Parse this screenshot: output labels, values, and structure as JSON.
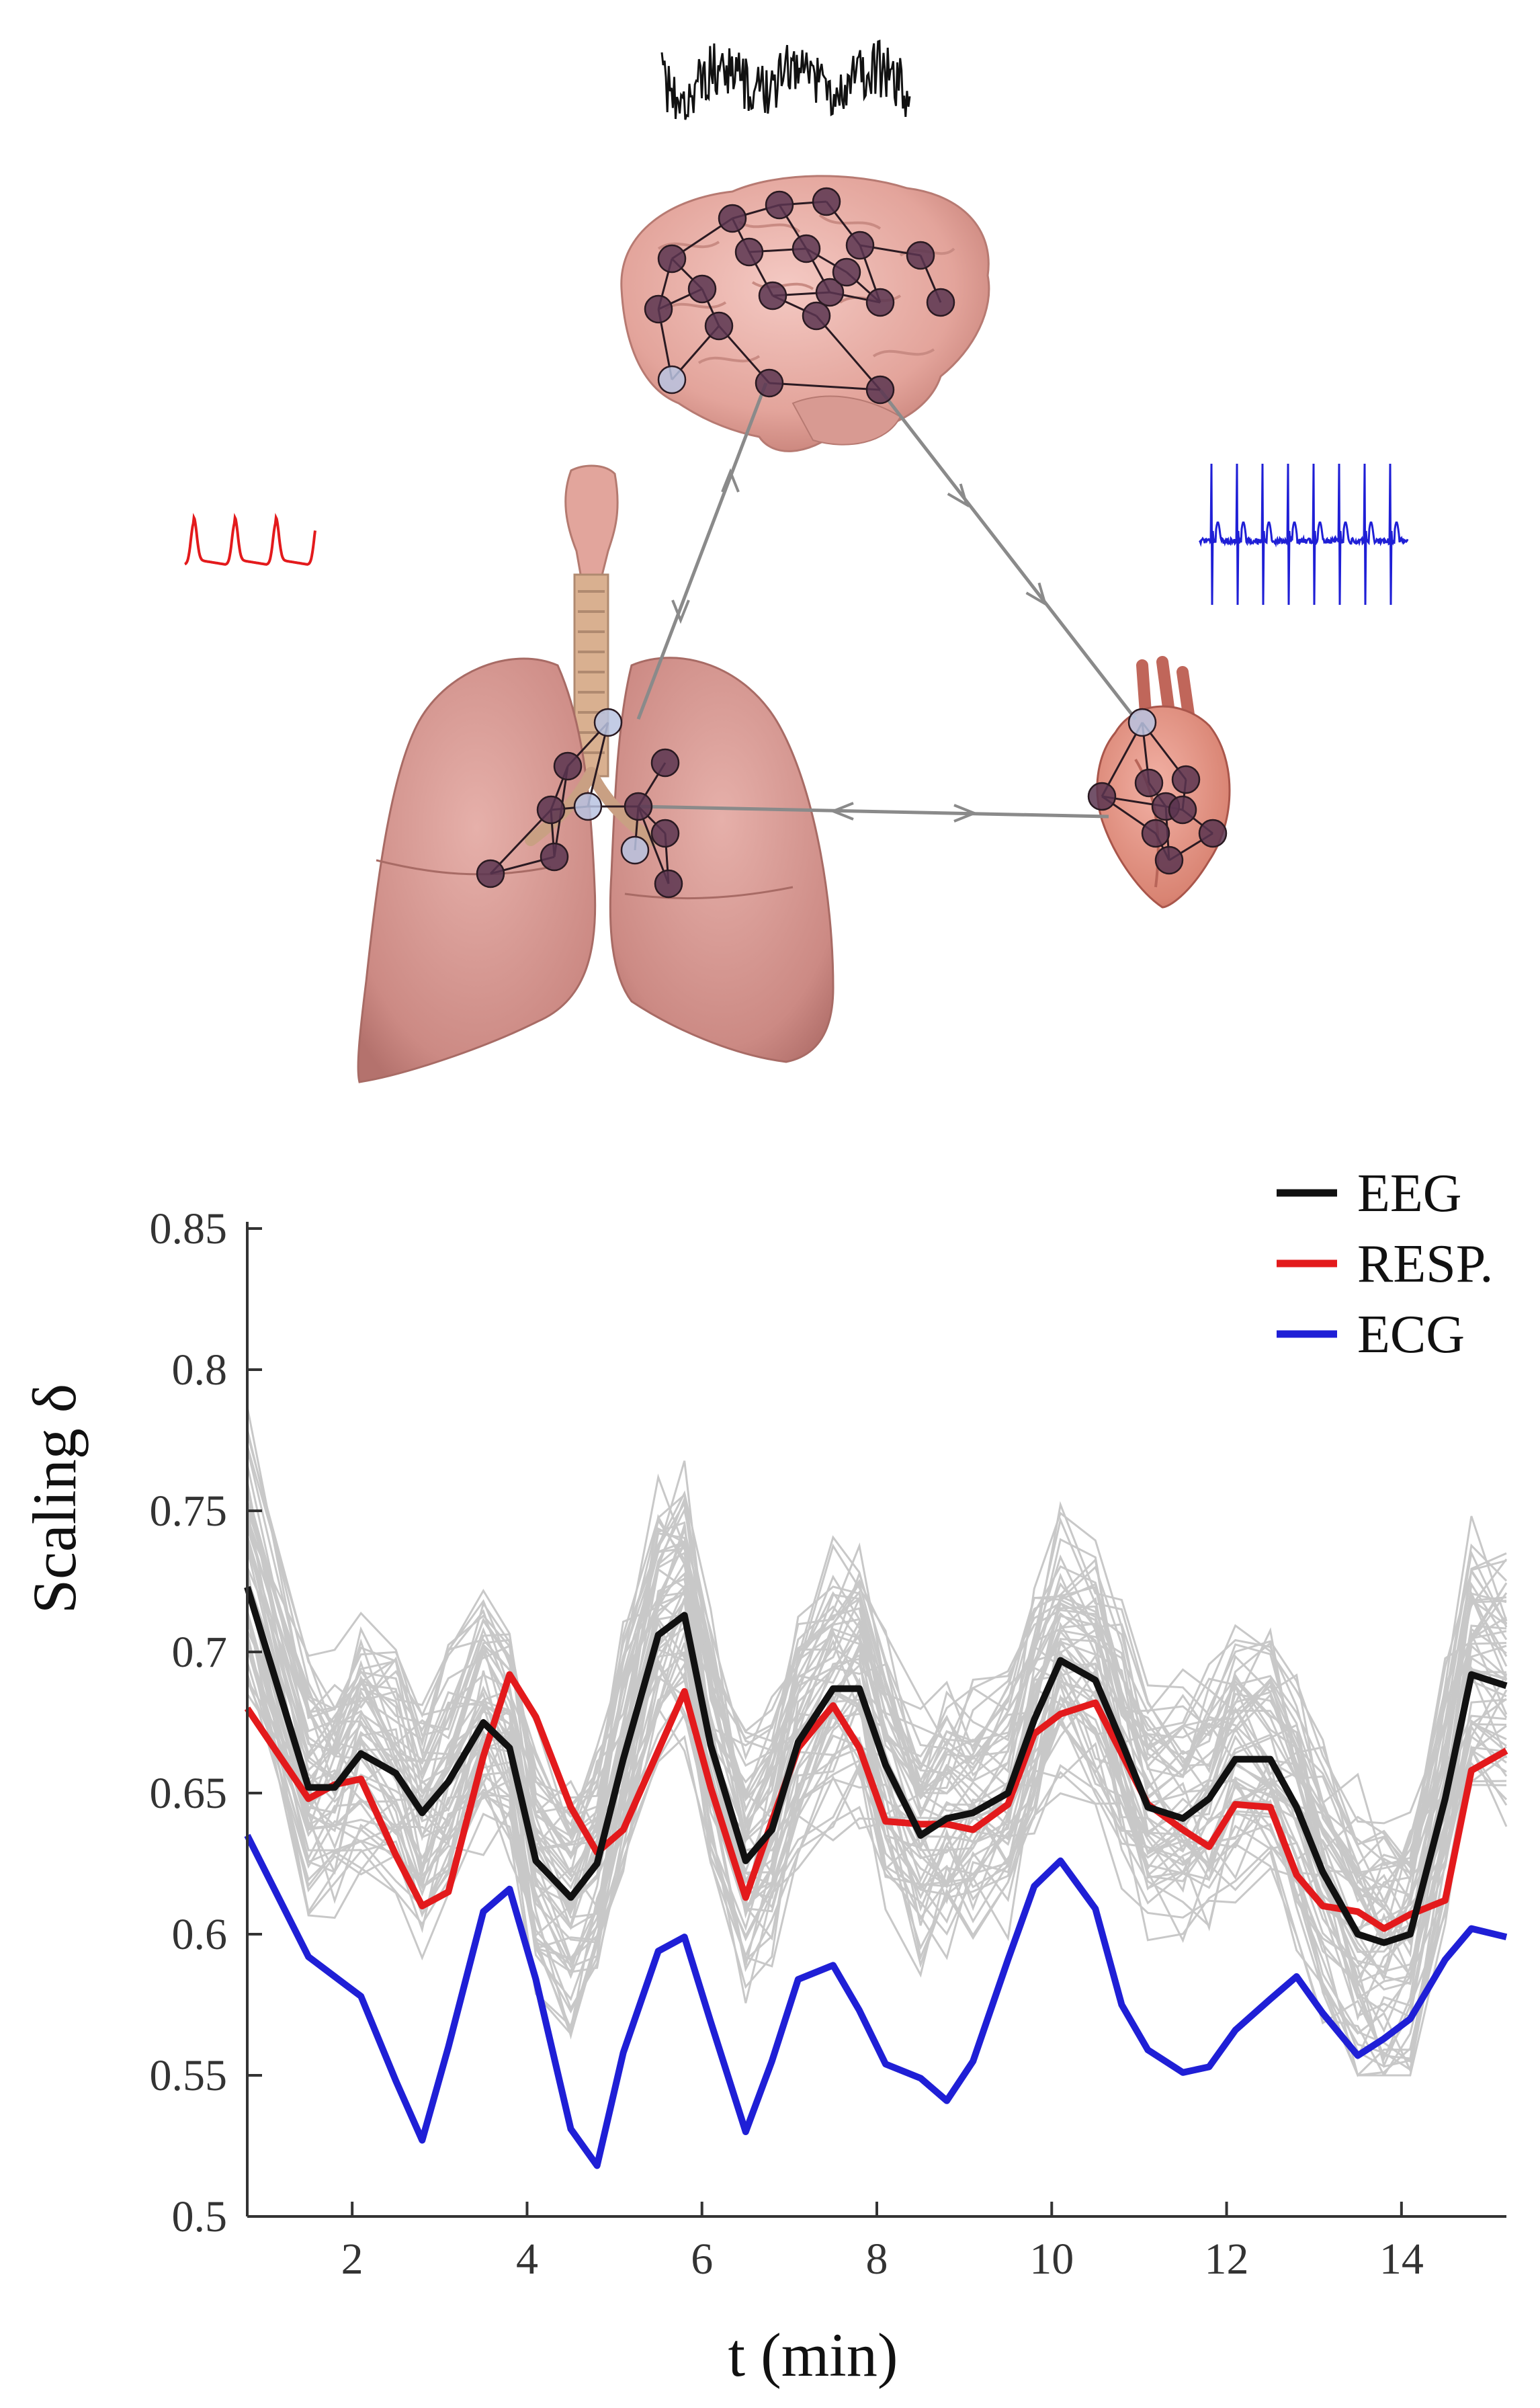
{
  "diagram": {
    "organs": [
      "brain-icon",
      "lungs-icon",
      "heart-icon"
    ],
    "signals": [
      {
        "organ": "brain",
        "color": "#111111"
      },
      {
        "organ": "lungs",
        "color": "#e31a1c"
      },
      {
        "organ": "heart",
        "color": "#1f1fd6"
      }
    ],
    "network_node_color": "#5a3550",
    "edge_color": "#8a8a8a"
  },
  "chart_data": {
    "type": "line",
    "xlabel": "t (min)",
    "ylabel": "Scaling  δ",
    "xlim": [
      0.8,
      15.2
    ],
    "ylim": [
      0.5,
      0.85
    ],
    "xticks": [
      2,
      4,
      6,
      8,
      10,
      12,
      14
    ],
    "yticks": [
      0.5,
      0.55,
      0.6,
      0.65,
      0.7,
      0.75,
      0.8,
      0.85
    ],
    "xtick_labels": [
      "2",
      "4",
      "6",
      "8",
      "10",
      "12",
      "14"
    ],
    "ytick_labels": [
      "0.5",
      "0.55",
      "0.6",
      "0.65",
      "0.7",
      "0.75",
      "0.8",
      "0.85"
    ],
    "legend_placement": "top-right",
    "grid": false,
    "background_traces_color": "#c8c8c8",
    "series": [
      {
        "name": "EEG",
        "color": "#111111",
        "x": [
          0.8,
          1.5,
          1.8,
          2.1,
          2.5,
          2.8,
          3.1,
          3.5,
          3.8,
          4.1,
          4.5,
          4.8,
          5.1,
          5.5,
          5.8,
          6.1,
          6.5,
          6.8,
          7.1,
          7.5,
          7.8,
          8.1,
          8.5,
          8.8,
          9.1,
          9.5,
          9.8,
          10.1,
          10.5,
          10.8,
          11.1,
          11.5,
          11.8,
          12.1,
          12.5,
          12.8,
          13.1,
          13.5,
          13.8,
          14.1,
          14.5,
          14.8,
          15.2
        ],
        "y": [
          0.723,
          0.652,
          0.652,
          0.664,
          0.657,
          0.643,
          0.654,
          0.675,
          0.666,
          0.626,
          0.613,
          0.625,
          0.662,
          0.706,
          0.713,
          0.667,
          0.626,
          0.637,
          0.668,
          0.687,
          0.687,
          0.66,
          0.635,
          0.641,
          0.643,
          0.65,
          0.676,
          0.697,
          0.69,
          0.668,
          0.645,
          0.641,
          0.648,
          0.662,
          0.662,
          0.645,
          0.622,
          0.6,
          0.597,
          0.6,
          0.648,
          0.692,
          0.688
        ]
      },
      {
        "name": "RESP.",
        "color": "#e31a1c",
        "x": [
          0.8,
          1.5,
          1.8,
          2.1,
          2.5,
          2.8,
          3.1,
          3.5,
          3.8,
          4.1,
          4.5,
          4.8,
          5.1,
          5.5,
          5.8,
          6.1,
          6.5,
          6.8,
          7.1,
          7.5,
          7.8,
          8.1,
          8.5,
          8.8,
          9.1,
          9.5,
          9.8,
          10.1,
          10.5,
          10.8,
          11.1,
          11.5,
          11.8,
          12.1,
          12.5,
          12.8,
          13.1,
          13.5,
          13.8,
          14.1,
          14.5,
          14.8,
          15.2
        ],
        "y": [
          0.68,
          0.648,
          0.653,
          0.655,
          0.628,
          0.61,
          0.615,
          0.663,
          0.692,
          0.677,
          0.645,
          0.629,
          0.637,
          0.665,
          0.686,
          0.652,
          0.613,
          0.64,
          0.666,
          0.681,
          0.666,
          0.64,
          0.639,
          0.639,
          0.637,
          0.646,
          0.671,
          0.678,
          0.682,
          0.664,
          0.646,
          0.637,
          0.631,
          0.646,
          0.645,
          0.621,
          0.61,
          0.608,
          0.602,
          0.607,
          0.612,
          0.658,
          0.665
        ]
      },
      {
        "name": "ECG",
        "color": "#1f1fd6",
        "x": [
          0.8,
          1.5,
          1.8,
          2.1,
          2.5,
          2.8,
          3.1,
          3.5,
          3.8,
          4.1,
          4.5,
          4.8,
          5.1,
          5.5,
          5.8,
          6.1,
          6.5,
          6.8,
          7.1,
          7.5,
          7.8,
          8.1,
          8.5,
          8.8,
          9.1,
          9.5,
          9.8,
          10.1,
          10.5,
          10.8,
          11.1,
          11.5,
          11.8,
          12.1,
          12.5,
          12.8,
          13.1,
          13.5,
          13.8,
          14.1,
          14.5,
          14.8,
          15.2
        ],
        "y": [
          0.635,
          0.592,
          0.585,
          0.578,
          0.548,
          0.527,
          0.56,
          0.608,
          0.616,
          0.584,
          0.531,
          0.518,
          0.558,
          0.594,
          0.599,
          0.569,
          0.53,
          0.555,
          0.584,
          0.589,
          0.573,
          0.554,
          0.549,
          0.541,
          0.555,
          0.591,
          0.617,
          0.626,
          0.609,
          0.575,
          0.559,
          0.551,
          0.553,
          0.566,
          0.577,
          0.585,
          0.572,
          0.557,
          0.563,
          0.57,
          0.591,
          0.602,
          0.599
        ]
      }
    ]
  }
}
